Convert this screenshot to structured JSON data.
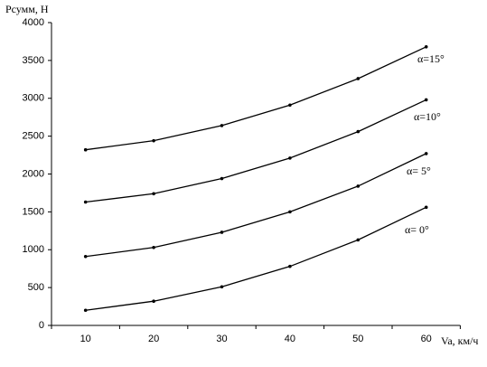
{
  "chart_data": {
    "type": "line",
    "y_label": "Pсумм, Н",
    "x_label": "Va, км/ч",
    "categories": [
      "10",
      "20",
      "30",
      "40",
      "50",
      "60"
    ],
    "series": [
      {
        "name": "α= 0°",
        "color": "#000000",
        "values": [
          200,
          320,
          510,
          780,
          1130,
          1560
        ]
      },
      {
        "name": "α= 5°",
        "color": "#000000",
        "values": [
          910,
          1030,
          1230,
          1500,
          1840,
          2270
        ]
      },
      {
        "name": "α=10°",
        "color": "#000000",
        "values": [
          1630,
          1740,
          1940,
          2210,
          2560,
          2980
        ]
      },
      {
        "name": "α=15°",
        "color": "#000000",
        "values": [
          2320,
          2440,
          2640,
          2910,
          3260,
          3680
        ]
      }
    ],
    "ylim": [
      0,
      4000
    ],
    "yticks": [
      0,
      500,
      1000,
      1500,
      2000,
      2500,
      3000,
      3500,
      4000
    ],
    "grid": false
  }
}
